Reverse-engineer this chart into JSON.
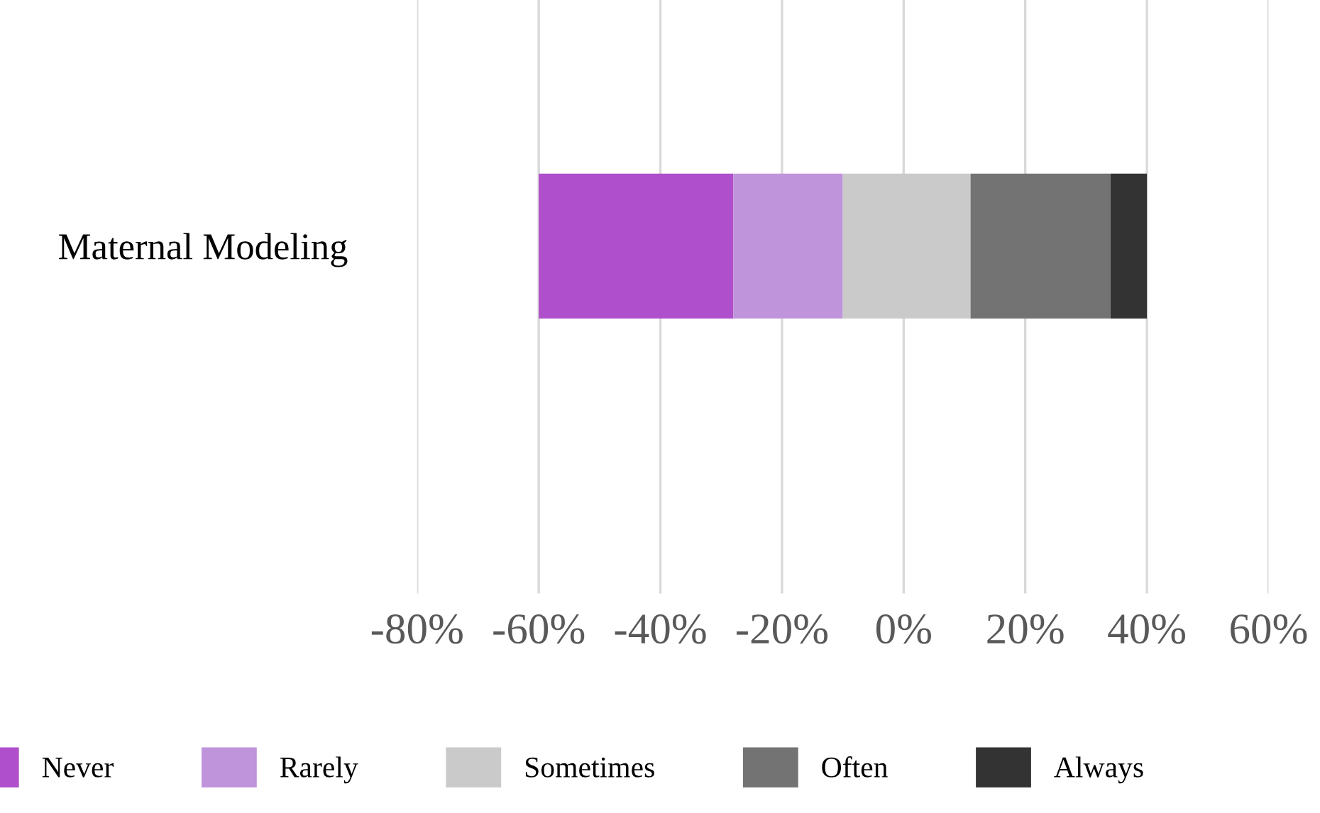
{
  "chart_data": {
    "type": "bar",
    "orientation": "horizontal",
    "categories": [
      "Maternal Modeling"
    ],
    "series": [
      {
        "name": "Never",
        "color": "#b04fcb",
        "base": [
          -60
        ],
        "values": [
          32
        ]
      },
      {
        "name": "Rarely",
        "color": "#bf94db",
        "base": [
          -28
        ],
        "values": [
          18
        ]
      },
      {
        "name": "Sometimes",
        "color": "#cacaca",
        "base": [
          -10
        ],
        "values": [
          21
        ]
      },
      {
        "name": "Often",
        "color": "#737373",
        "base": [
          11
        ],
        "values": [
          23
        ]
      },
      {
        "name": "Always",
        "color": "#333333",
        "base": [
          34
        ],
        "values": [
          6
        ]
      }
    ],
    "xlim": [
      -80,
      60
    ],
    "xticks": [
      {
        "value": -80,
        "label": "-80%"
      },
      {
        "value": -60,
        "label": "-60%"
      },
      {
        "value": -40,
        "label": "-40%"
      },
      {
        "value": -20,
        "label": "-20%"
      },
      {
        "value": 0,
        "label": "0%"
      },
      {
        "value": 20,
        "label": "20%"
      },
      {
        "value": 40,
        "label": "40%"
      },
      {
        "value": 60,
        "label": "60%"
      }
    ],
    "grid": "x",
    "legend": "bottom"
  }
}
